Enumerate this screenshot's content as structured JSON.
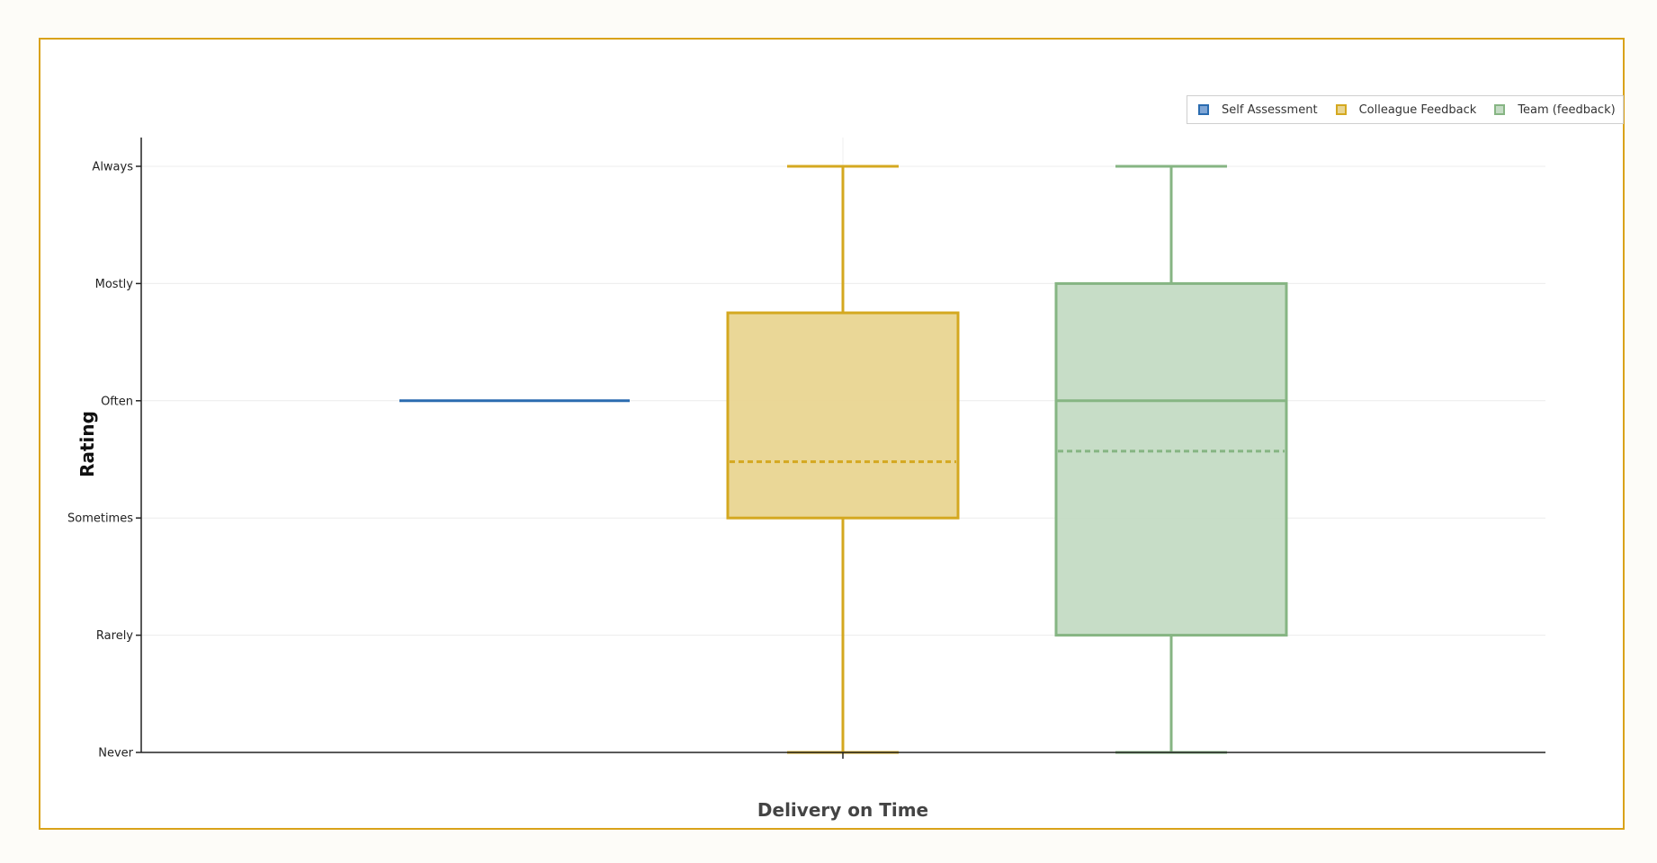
{
  "chart_data": {
    "type": "box",
    "xlabel": "Delivery on Time",
    "ylabel": "Rating",
    "y_categories": [
      "Never",
      "Rarely",
      "Sometimes",
      "Often",
      "Mostly",
      "Always"
    ],
    "ylim": [
      0,
      5
    ],
    "grid": true,
    "legend_position": "top-right",
    "series": [
      {
        "name": "Self Assessment",
        "color": "#2b6cb0",
        "fill": "#2b6cb0",
        "min": 3,
        "q1": 3,
        "median": 3,
        "q3": 3,
        "max": 3,
        "mean": null
      },
      {
        "name": "Colleague Feedback",
        "color": "#d4a820",
        "fill": "#e9d591",
        "min": 0,
        "q1": 2,
        "median": null,
        "q3": 3.75,
        "max": 5,
        "mean": 2.48
      },
      {
        "name": "Team (feedback)",
        "color": "#86b583",
        "fill": "#c4dbc4",
        "min": 0,
        "q1": 1,
        "median": 3,
        "q3": 4,
        "max": 5,
        "mean": 2.57
      }
    ]
  }
}
